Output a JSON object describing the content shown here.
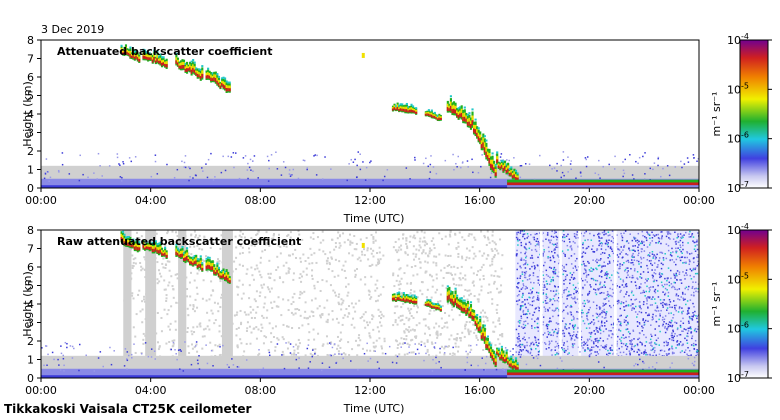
{
  "date_label": "3 Dec 2019",
  "footer": "Tikkakoski Vaisala CT25K ceilometer",
  "chart_data": [
    {
      "type": "heatmap",
      "title": "Attenuated backscatter coefficient",
      "xlabel": "Time (UTC)",
      "ylabel": "Height (km)",
      "xticks": [
        "00:00",
        "04:00",
        "08:00",
        "12:00",
        "16:00",
        "20:00",
        "00:00"
      ],
      "yticks": [
        "0",
        "1",
        "2",
        "3",
        "4",
        "5",
        "6",
        "7",
        "8"
      ],
      "xlim_hours": [
        0,
        24
      ],
      "ylim": [
        0,
        8
      ],
      "colorbar": {
        "label": "m⁻¹ sr⁻¹",
        "ticks": [
          "10",
          "10",
          "10",
          "10"
        ],
        "exponents": [
          "-7",
          "-6",
          "-5",
          "-4"
        ],
        "scale": "log",
        "range": [
          1e-07,
          0.0001
        ]
      },
      "features": [
        {
          "hours": [
            2.8,
            6.8
          ],
          "height_km": [
            5.0,
            7.5
          ],
          "level": "strong",
          "description_visible": false
        },
        {
          "hours": [
            12.7,
            16.8
          ],
          "height_km": [
            0.5,
            4.6
          ],
          "level": "strong"
        },
        {
          "hours": [
            16.8,
            24
          ],
          "height_km": [
            0.1,
            0.3
          ],
          "level": "strong"
        },
        {
          "hours": [
            0,
            24
          ],
          "height_km": [
            0,
            1.3
          ],
          "level": "weak"
        }
      ]
    },
    {
      "type": "heatmap",
      "title": "Raw attenuated backscatter coefficient",
      "xlabel": "Time (UTC)",
      "ylabel": "Height (km)",
      "xticks": [
        "00:00",
        "04:00",
        "08:00",
        "12:00",
        "16:00",
        "20:00",
        "00:00"
      ],
      "yticks": [
        "0",
        "1",
        "2",
        "3",
        "4",
        "5",
        "6",
        "7",
        "8"
      ],
      "xlim_hours": [
        0,
        24
      ],
      "ylim": [
        0,
        8
      ],
      "colorbar": {
        "label": "m⁻¹ sr⁻¹",
        "ticks": [
          "10",
          "10",
          "10",
          "10"
        ],
        "exponents": [
          "-7",
          "-6",
          "-5",
          "-4"
        ],
        "scale": "log",
        "range": [
          1e-07,
          0.0001
        ]
      }
    }
  ],
  "colors": {
    "noise_gray": "#d0d0d0",
    "weak_blue": "#3b3bd8",
    "cloud_red": "#c81e1e",
    "cloud_yellow": "#f0e000",
    "cloud_green": "#20b020",
    "cloud_cyan": "#20c8c8"
  }
}
